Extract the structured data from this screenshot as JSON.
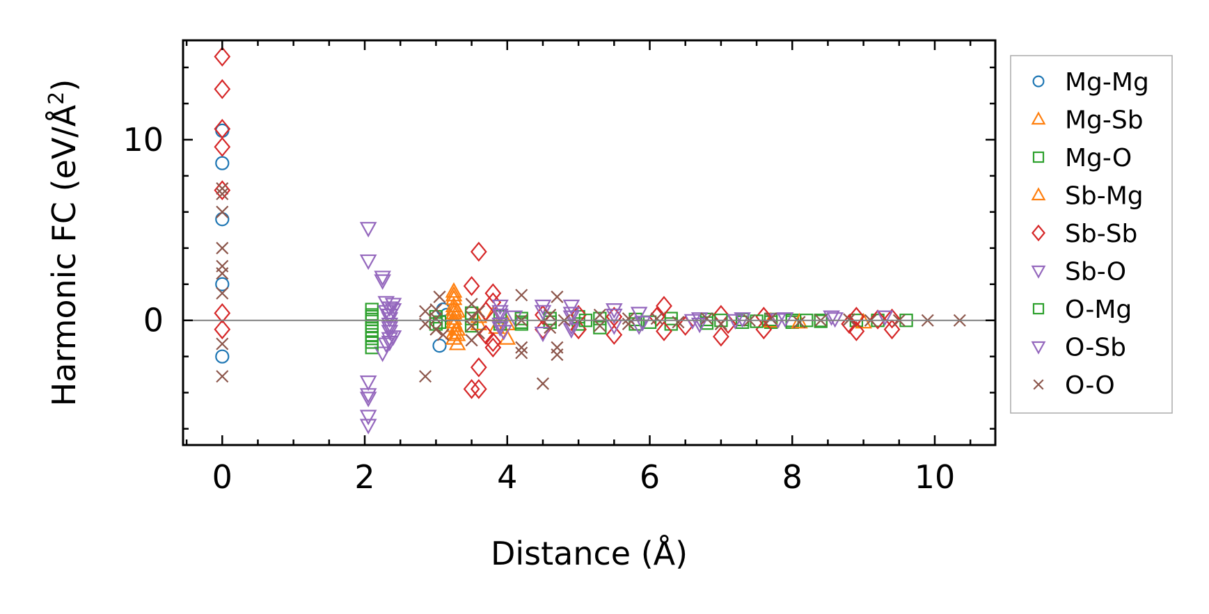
{
  "chart_data": {
    "type": "scatter",
    "xlabel": "Distance (Å)",
    "ylabel_main": "Harmonic FC (eV/Å",
    "ylabel_sup": "2",
    "ylabel_end": ")",
    "xlim": [
      -0.55,
      10.85
    ],
    "ylim": [
      -6.9,
      15.5
    ],
    "x_ticks": [
      0,
      2,
      4,
      6,
      8,
      10
    ],
    "x_tick_labels": [
      "0",
      "2",
      "4",
      "6",
      "8",
      "10"
    ],
    "y_ticks": [
      0,
      10
    ],
    "y_tick_labels": [
      "0",
      "10"
    ],
    "x_minor_step": 0.5,
    "y_minor_step": 2,
    "zero_line": true,
    "grid": false,
    "legend_position": "outside-right",
    "series": [
      {
        "name": "Mg-Mg",
        "marker": "circle",
        "color": "#1f77b4",
        "points": [
          [
            0,
            10.5
          ],
          [
            0,
            8.7
          ],
          [
            0,
            5.6
          ],
          [
            0,
            2.0
          ],
          [
            0,
            -2.0
          ],
          [
            3.05,
            -1.4
          ],
          [
            3.1,
            0.6
          ],
          [
            3.15,
            0.3
          ]
        ]
      },
      {
        "name": "Mg-Sb",
        "marker": "triangle-up",
        "color": "#ff7f0e",
        "points": [
          [
            3.25,
            1.6
          ],
          [
            3.25,
            1.2
          ],
          [
            3.25,
            0.8
          ],
          [
            3.25,
            0.4
          ],
          [
            3.25,
            0.1
          ],
          [
            3.25,
            -0.3
          ],
          [
            3.25,
            -0.7
          ],
          [
            3.25,
            -1.0
          ],
          [
            3.3,
            -1.3
          ],
          [
            3.3,
            0.5
          ],
          [
            3.3,
            -0.5
          ],
          [
            3.6,
            0.2
          ],
          [
            3.85,
            -0.4
          ],
          [
            4.0,
            -1.0
          ],
          [
            4.0,
            -0.2
          ]
        ]
      },
      {
        "name": "Mg-O",
        "marker": "square",
        "color": "#2ca02c",
        "points": [
          [
            2.1,
            0.6
          ],
          [
            2.1,
            0.3
          ],
          [
            2.1,
            0.05
          ],
          [
            2.1,
            -0.3
          ],
          [
            2.1,
            -0.6
          ],
          [
            2.1,
            -1.0
          ],
          [
            2.1,
            -1.5
          ],
          [
            3.0,
            0.2
          ],
          [
            3.0,
            -0.2
          ],
          [
            3.5,
            0.4
          ],
          [
            3.5,
            -0.3
          ],
          [
            3.9,
            0.2
          ],
          [
            3.9,
            -0.2
          ],
          [
            4.2,
            0.1
          ],
          [
            4.2,
            -0.2
          ],
          [
            4.6,
            0.1
          ],
          [
            4.6,
            -0.1
          ],
          [
            5.0,
            0.2
          ],
          [
            5.0,
            -0.2
          ],
          [
            5.3,
            0.1
          ],
          [
            5.3,
            -0.4
          ],
          [
            5.8,
            0.05
          ],
          [
            5.8,
            -0.2
          ],
          [
            6.3,
            0.1
          ],
          [
            6.3,
            -0.2
          ],
          [
            6.8,
            0.05
          ],
          [
            6.8,
            -0.15
          ],
          [
            7.3,
            0.05
          ],
          [
            7.3,
            -0.1
          ],
          [
            7.7,
            0.05
          ],
          [
            7.7,
            -0.1
          ],
          [
            8.0,
            0.0
          ],
          [
            8.0,
            -0.1
          ],
          [
            8.4,
            0.0
          ],
          [
            8.4,
            -0.05
          ],
          [
            8.9,
            0.0
          ],
          [
            9.2,
            0.0
          ],
          [
            9.6,
            0.0
          ]
        ]
      },
      {
        "name": "Sb-Mg",
        "marker": "triangle-up",
        "color": "#ff7f0e",
        "points": [
          [
            3.25,
            1.4
          ],
          [
            3.25,
            0.6
          ],
          [
            3.25,
            -0.1
          ],
          [
            3.3,
            -0.8
          ],
          [
            3.6,
            -0.2
          ],
          [
            3.8,
            0.3
          ],
          [
            7.7,
            -0.05
          ],
          [
            8.1,
            -0.1
          ],
          [
            9.0,
            -0.1
          ]
        ]
      },
      {
        "name": "Sb-Sb",
        "marker": "diamond",
        "color": "#d62728",
        "points": [
          [
            0,
            14.6
          ],
          [
            0,
            12.8
          ],
          [
            0,
            10.6
          ],
          [
            0,
            9.6
          ],
          [
            0,
            7.2
          ],
          [
            0,
            0.4
          ],
          [
            0,
            -0.5
          ],
          [
            3.6,
            3.8
          ],
          [
            3.5,
            1.9
          ],
          [
            3.5,
            -3.8
          ],
          [
            3.6,
            -3.8
          ],
          [
            3.6,
            -2.6
          ],
          [
            3.8,
            1.5
          ],
          [
            3.8,
            1.0
          ],
          [
            3.8,
            -1.5
          ],
          [
            3.8,
            -1.2
          ],
          [
            3.7,
            0.5
          ],
          [
            3.7,
            -0.8
          ],
          [
            4.5,
            0.3
          ],
          [
            4.5,
            -0.5
          ],
          [
            5.0,
            0.3
          ],
          [
            5.0,
            -0.5
          ],
          [
            5.5,
            0.2
          ],
          [
            5.5,
            -0.8
          ],
          [
            6.2,
            0.8
          ],
          [
            6.2,
            -0.6
          ],
          [
            6.1,
            0.2
          ],
          [
            6.5,
            -0.3
          ],
          [
            7.0,
            0.3
          ],
          [
            7.0,
            -0.9
          ],
          [
            7.1,
            -0.2
          ],
          [
            7.6,
            -0.5
          ],
          [
            7.6,
            0.2
          ],
          [
            8.8,
            -0.2
          ],
          [
            8.9,
            0.2
          ],
          [
            8.9,
            -0.6
          ],
          [
            9.2,
            0.05
          ],
          [
            9.4,
            -0.5
          ],
          [
            9.4,
            0.1
          ]
        ]
      },
      {
        "name": "Sb-O",
        "marker": "triangle-down",
        "color": "#9467bd",
        "points": [
          [
            2.05,
            5.1
          ],
          [
            2.05,
            3.3
          ],
          [
            2.05,
            -3.4
          ],
          [
            2.05,
            -4.1
          ],
          [
            2.05,
            -5.3
          ],
          [
            2.05,
            -5.8
          ],
          [
            2.25,
            2.4
          ],
          [
            2.3,
            1.0
          ],
          [
            2.35,
            0.7
          ],
          [
            2.35,
            0.3
          ],
          [
            2.35,
            -0.2
          ],
          [
            2.35,
            -0.6
          ],
          [
            2.35,
            -1.2
          ],
          [
            2.25,
            -1.8
          ],
          [
            2.3,
            -1.3
          ],
          [
            2.4,
            0.9
          ],
          [
            2.4,
            -0.9
          ],
          [
            3.9,
            0.8
          ],
          [
            3.9,
            0.3
          ],
          [
            3.9,
            -0.4
          ],
          [
            3.95,
            -0.6
          ],
          [
            4.1,
            0.2
          ],
          [
            4.5,
            0.8
          ],
          [
            4.5,
            -0.7
          ],
          [
            4.9,
            0.8
          ],
          [
            4.9,
            0.4
          ],
          [
            4.9,
            -0.5
          ],
          [
            5.5,
            0.6
          ],
          [
            5.5,
            -0.3
          ],
          [
            5.85,
            0.4
          ],
          [
            5.85,
            -0.3
          ],
          [
            6.7,
            0.1
          ],
          [
            6.7,
            -0.2
          ],
          [
            7.3,
            0.1
          ],
          [
            7.9,
            0.1
          ],
          [
            8.55,
            0.2
          ],
          [
            9.3,
            0.2
          ]
        ]
      },
      {
        "name": "O-Mg",
        "marker": "square",
        "color": "#2ca02c",
        "points": [
          [
            2.1,
            0.2
          ],
          [
            2.1,
            -0.8
          ],
          [
            2.1,
            -1.2
          ],
          [
            3.05,
            -0.1
          ],
          [
            3.5,
            0.1
          ],
          [
            4.2,
            -0.1
          ],
          [
            5.1,
            0.0
          ],
          [
            6.0,
            -0.1
          ],
          [
            7.0,
            0.0
          ],
          [
            7.5,
            -0.05
          ],
          [
            8.2,
            0.0
          ]
        ]
      },
      {
        "name": "O-Sb",
        "marker": "triangle-down",
        "color": "#9467bd",
        "points": [
          [
            2.05,
            -4.3
          ],
          [
            2.25,
            2.2
          ],
          [
            2.3,
            0.5
          ],
          [
            2.35,
            0.1
          ],
          [
            2.35,
            -0.4
          ],
          [
            2.35,
            -1.0
          ],
          [
            2.4,
            0.6
          ],
          [
            3.9,
            0.5
          ],
          [
            3.9,
            -0.2
          ],
          [
            4.5,
            0.5
          ],
          [
            4.9,
            0.2
          ],
          [
            4.9,
            -0.3
          ],
          [
            5.5,
            0.3
          ],
          [
            5.9,
            -0.1
          ],
          [
            6.6,
            0.0
          ],
          [
            7.2,
            0.0
          ],
          [
            7.8,
            0.05
          ],
          [
            8.6,
            0.1
          ]
        ]
      },
      {
        "name": "O-O",
        "marker": "x",
        "color": "#8c564b",
        "points": [
          [
            0,
            7.3
          ],
          [
            0,
            7.0
          ],
          [
            0,
            6.0
          ],
          [
            0,
            4.0
          ],
          [
            0,
            3.0
          ],
          [
            0,
            2.6
          ],
          [
            0,
            1.5
          ],
          [
            0,
            -1.3
          ],
          [
            0,
            -3.1
          ],
          [
            2.85,
            0.5
          ],
          [
            2.85,
            -0.2
          ],
          [
            2.85,
            -3.1
          ],
          [
            3.0,
            0.6
          ],
          [
            3.0,
            0.1
          ],
          [
            3.0,
            -0.5
          ],
          [
            3.05,
            1.3
          ],
          [
            3.1,
            -0.8
          ],
          [
            3.5,
            0.9
          ],
          [
            3.5,
            0.2
          ],
          [
            3.5,
            -0.3
          ],
          [
            3.5,
            -1.1
          ],
          [
            3.6,
            0.5
          ],
          [
            3.6,
            -0.7
          ],
          [
            4.2,
            1.4
          ],
          [
            4.2,
            -1.5
          ],
          [
            4.2,
            -1.8
          ],
          [
            4.2,
            0.0
          ],
          [
            4.5,
            -3.5
          ],
          [
            4.6,
            0.3
          ],
          [
            4.6,
            -0.4
          ],
          [
            4.7,
            1.3
          ],
          [
            4.7,
            -1.5
          ],
          [
            4.7,
            -1.9
          ],
          [
            4.8,
            0.0
          ],
          [
            5.3,
            0.3
          ],
          [
            5.3,
            -0.3
          ],
          [
            5.7,
            0.1
          ],
          [
            5.7,
            -0.2
          ],
          [
            6.1,
            0.1
          ],
          [
            6.4,
            -0.1
          ],
          [
            6.8,
            0.1
          ],
          [
            7.0,
            -0.2
          ],
          [
            7.4,
            0.0
          ],
          [
            7.7,
            0.1
          ],
          [
            8.1,
            -0.1
          ],
          [
            8.4,
            0.0
          ],
          [
            8.8,
            0.05
          ],
          [
            9.1,
            0.0
          ],
          [
            9.5,
            0.0
          ],
          [
            9.9,
            0.0
          ],
          [
            10.35,
            0.0
          ]
        ]
      }
    ]
  }
}
